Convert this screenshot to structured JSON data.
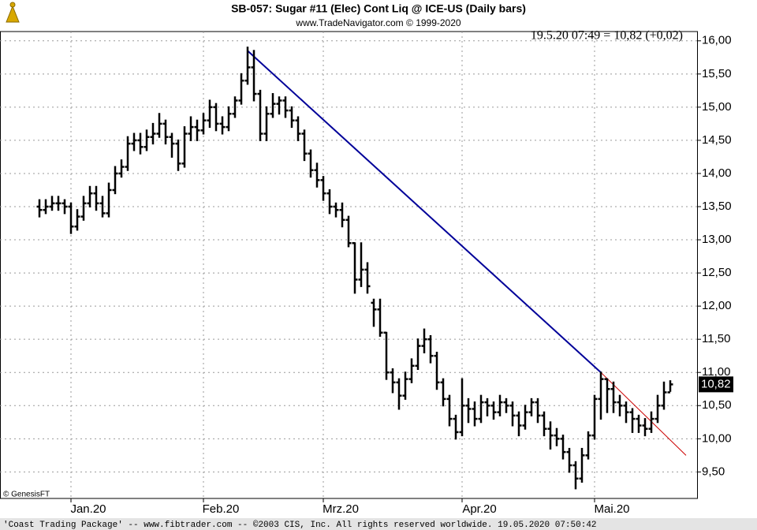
{
  "chart_data": {
    "type": "ohlc",
    "title": "SB-057:  Sugar #11 (Elec) Cont Liq @ ICE-US  (Daily bars)",
    "subtitle": "www.TradeNavigator.com © 1999-2020",
    "info": "19.5.20 07:49 = 10,82 (+0,02)",
    "watermark": "© GenesisFT",
    "footer": "'Coast Trading Package' -- www.fibtrader.com -- ©2003 CIS, Inc. All rights reserved worldwide.   19.05.2020 07:50:42",
    "last_price": {
      "value": 10.82,
      "label": "10,82"
    },
    "color": "#000000",
    "grid": true,
    "categories": [
      null,
      null,
      null,
      null,
      null,
      "Jan.20",
      null,
      null,
      null,
      null,
      null,
      null,
      null,
      null,
      null,
      null,
      null,
      null,
      null,
      null,
      null,
      null,
      null,
      null,
      null,
      null,
      "Feb.20",
      null,
      null,
      null,
      null,
      null,
      null,
      null,
      null,
      null,
      null,
      null,
      null,
      null,
      null,
      null,
      null,
      null,
      null,
      "Mrz.20",
      null,
      null,
      null,
      null,
      null,
      null,
      null,
      null,
      null,
      null,
      null,
      null,
      null,
      null,
      null,
      null,
      null,
      null,
      null,
      null,
      null,
      "Apr.20",
      null,
      null,
      null,
      null,
      null,
      null,
      null,
      null,
      null,
      null,
      null,
      null,
      null,
      null,
      null,
      null,
      null,
      null,
      null,
      null,
      "Mai.20",
      null,
      null,
      null,
      null,
      null,
      null,
      null,
      null,
      null,
      null,
      null,
      null
    ],
    "open": [
      13.5,
      13.45,
      13.5,
      13.55,
      13.55,
      13.5,
      13.2,
      13.35,
      13.55,
      13.7,
      13.55,
      13.4,
      13.75,
      14.0,
      14.1,
      14.45,
      14.5,
      14.4,
      14.55,
      14.6,
      14.75,
      14.55,
      14.45,
      14.15,
      14.6,
      14.7,
      14.65,
      14.8,
      15.0,
      14.75,
      14.7,
      14.9,
      15.1,
      15.4,
      15.6,
      15.2,
      14.6,
      14.9,
      15.05,
      15.1,
      14.95,
      14.8,
      14.6,
      14.3,
      14.05,
      13.9,
      13.7,
      13.5,
      13.45,
      13.3,
      12.95,
      12.4,
      12.55,
      12.05,
      11.95,
      11.6,
      11.0,
      10.85,
      10.65,
      10.9,
      11.1,
      11.4,
      11.5,
      11.25,
      10.85,
      10.6,
      10.3,
      10.1,
      10.5,
      10.45,
      10.3,
      10.55,
      10.5,
      10.4,
      10.55,
      10.5,
      10.35,
      10.2,
      10.4,
      10.55,
      10.35,
      10.15,
      10.05,
      10.0,
      9.8,
      9.6,
      9.4,
      9.75,
      10.05,
      10.6,
      10.9,
      10.75,
      10.55,
      10.5,
      10.4,
      10.3,
      10.2,
      10.15,
      10.3,
      10.5,
      10.7
    ],
    "high": [
      13.6,
      13.6,
      13.65,
      13.65,
      13.6,
      13.55,
      13.45,
      13.65,
      13.8,
      13.8,
      13.65,
      13.85,
      14.1,
      14.2,
      14.55,
      14.6,
      14.6,
      14.65,
      14.75,
      14.9,
      14.8,
      14.6,
      14.5,
      14.7,
      14.85,
      14.8,
      14.9,
      15.1,
      15.05,
      14.85,
      15.0,
      15.15,
      15.5,
      15.9,
      15.85,
      15.25,
      15.0,
      15.2,
      15.15,
      15.15,
      15.0,
      14.85,
      14.65,
      14.35,
      14.15,
      13.95,
      13.75,
      13.55,
      13.55,
      13.35,
      12.95,
      12.95,
      12.65,
      12.1,
      12.1,
      11.6,
      11.05,
      10.9,
      11.0,
      11.2,
      11.5,
      11.65,
      11.55,
      11.3,
      10.9,
      10.65,
      10.35,
      10.9,
      10.6,
      10.55,
      10.65,
      10.6,
      10.55,
      10.65,
      10.6,
      10.55,
      10.4,
      10.5,
      10.6,
      10.6,
      10.4,
      10.25,
      10.15,
      10.05,
      9.85,
      9.65,
      9.85,
      10.1,
      10.65,
      11.0,
      10.9,
      10.85,
      10.65,
      10.55,
      10.45,
      10.35,
      10.3,
      10.4,
      10.65,
      10.85,
      10.87
    ],
    "low": [
      13.35,
      13.4,
      13.45,
      13.45,
      13.4,
      13.1,
      13.15,
      13.3,
      13.5,
      13.45,
      13.35,
      13.35,
      13.7,
      13.95,
      14.05,
      14.35,
      14.3,
      14.35,
      14.45,
      14.55,
      14.45,
      14.25,
      14.05,
      14.1,
      14.5,
      14.5,
      14.6,
      14.7,
      14.65,
      14.6,
      14.65,
      14.85,
      15.05,
      15.35,
      15.1,
      14.5,
      14.5,
      14.85,
      14.9,
      14.85,
      14.7,
      14.5,
      14.2,
      13.95,
      13.8,
      13.6,
      13.4,
      13.35,
      13.2,
      12.9,
      12.2,
      12.3,
      12.2,
      11.7,
      11.55,
      10.9,
      10.7,
      10.45,
      10.6,
      10.85,
      11.05,
      11.3,
      11.15,
      10.75,
      10.5,
      10.2,
      10.0,
      10.05,
      10.25,
      10.2,
      10.25,
      10.35,
      10.3,
      10.35,
      10.4,
      10.2,
      10.05,
      10.15,
      10.35,
      10.25,
      10.05,
      9.85,
      9.9,
      9.7,
      9.5,
      9.25,
      9.35,
      9.7,
      10.0,
      10.3,
      10.4,
      10.4,
      10.35,
      10.25,
      10.1,
      10.1,
      10.05,
      10.1,
      10.25,
      10.45,
      10.72
    ],
    "close": [
      13.45,
      13.5,
      13.55,
      13.55,
      13.5,
      13.2,
      13.35,
      13.55,
      13.7,
      13.55,
      13.4,
      13.75,
      14.0,
      14.1,
      14.45,
      14.5,
      14.4,
      14.55,
      14.6,
      14.75,
      14.55,
      14.45,
      14.15,
      14.6,
      14.7,
      14.65,
      14.8,
      15.0,
      14.75,
      14.7,
      14.9,
      15.1,
      15.4,
      15.6,
      15.2,
      14.6,
      14.9,
      15.05,
      15.1,
      14.95,
      14.8,
      14.6,
      14.3,
      14.05,
      13.9,
      13.7,
      13.5,
      13.45,
      13.3,
      12.95,
      12.4,
      12.55,
      12.3,
      11.95,
      11.6,
      11.0,
      10.85,
      10.65,
      10.9,
      11.1,
      11.4,
      11.5,
      11.25,
      10.85,
      10.6,
      10.3,
      10.1,
      10.5,
      10.45,
      10.3,
      10.55,
      10.5,
      10.4,
      10.55,
      10.5,
      10.35,
      10.2,
      10.4,
      10.55,
      10.35,
      10.15,
      10.05,
      10.0,
      9.8,
      9.6,
      9.4,
      9.75,
      10.05,
      10.6,
      10.9,
      10.75,
      10.55,
      10.5,
      10.4,
      10.3,
      10.2,
      10.15,
      10.3,
      10.5,
      10.7,
      10.82
    ],
    "trend_lines": [
      {
        "color": "#000099",
        "points": [
          [
            33,
            15.85
          ],
          [
            89,
            11.0
          ]
        ]
      },
      {
        "color": "#cc0000",
        "points": [
          [
            89,
            11.0
          ],
          [
            102.5,
            9.75
          ]
        ]
      }
    ],
    "ylim": [
      9.1,
      16.14
    ],
    "yticks": [
      {
        "value": 9.5,
        "label": "9,50"
      },
      {
        "value": 10,
        "label": "10,00"
      },
      {
        "value": 10.5,
        "label": "10,50"
      },
      {
        "value": 11,
        "label": "11,00"
      },
      {
        "value": 11.5,
        "label": "11,50"
      },
      {
        "value": 12,
        "label": "12,00"
      },
      {
        "value": 12.5,
        "label": "12,50"
      },
      {
        "value": 13,
        "label": "13,00"
      },
      {
        "value": 13.5,
        "label": "13,50"
      },
      {
        "value": 14,
        "label": "14,00"
      },
      {
        "value": 14.5,
        "label": "14,50"
      },
      {
        "value": 15,
        "label": "15,00"
      },
      {
        "value": 15.5,
        "label": "15,50"
      },
      {
        "value": 16,
        "label": "16,00"
      }
    ]
  }
}
